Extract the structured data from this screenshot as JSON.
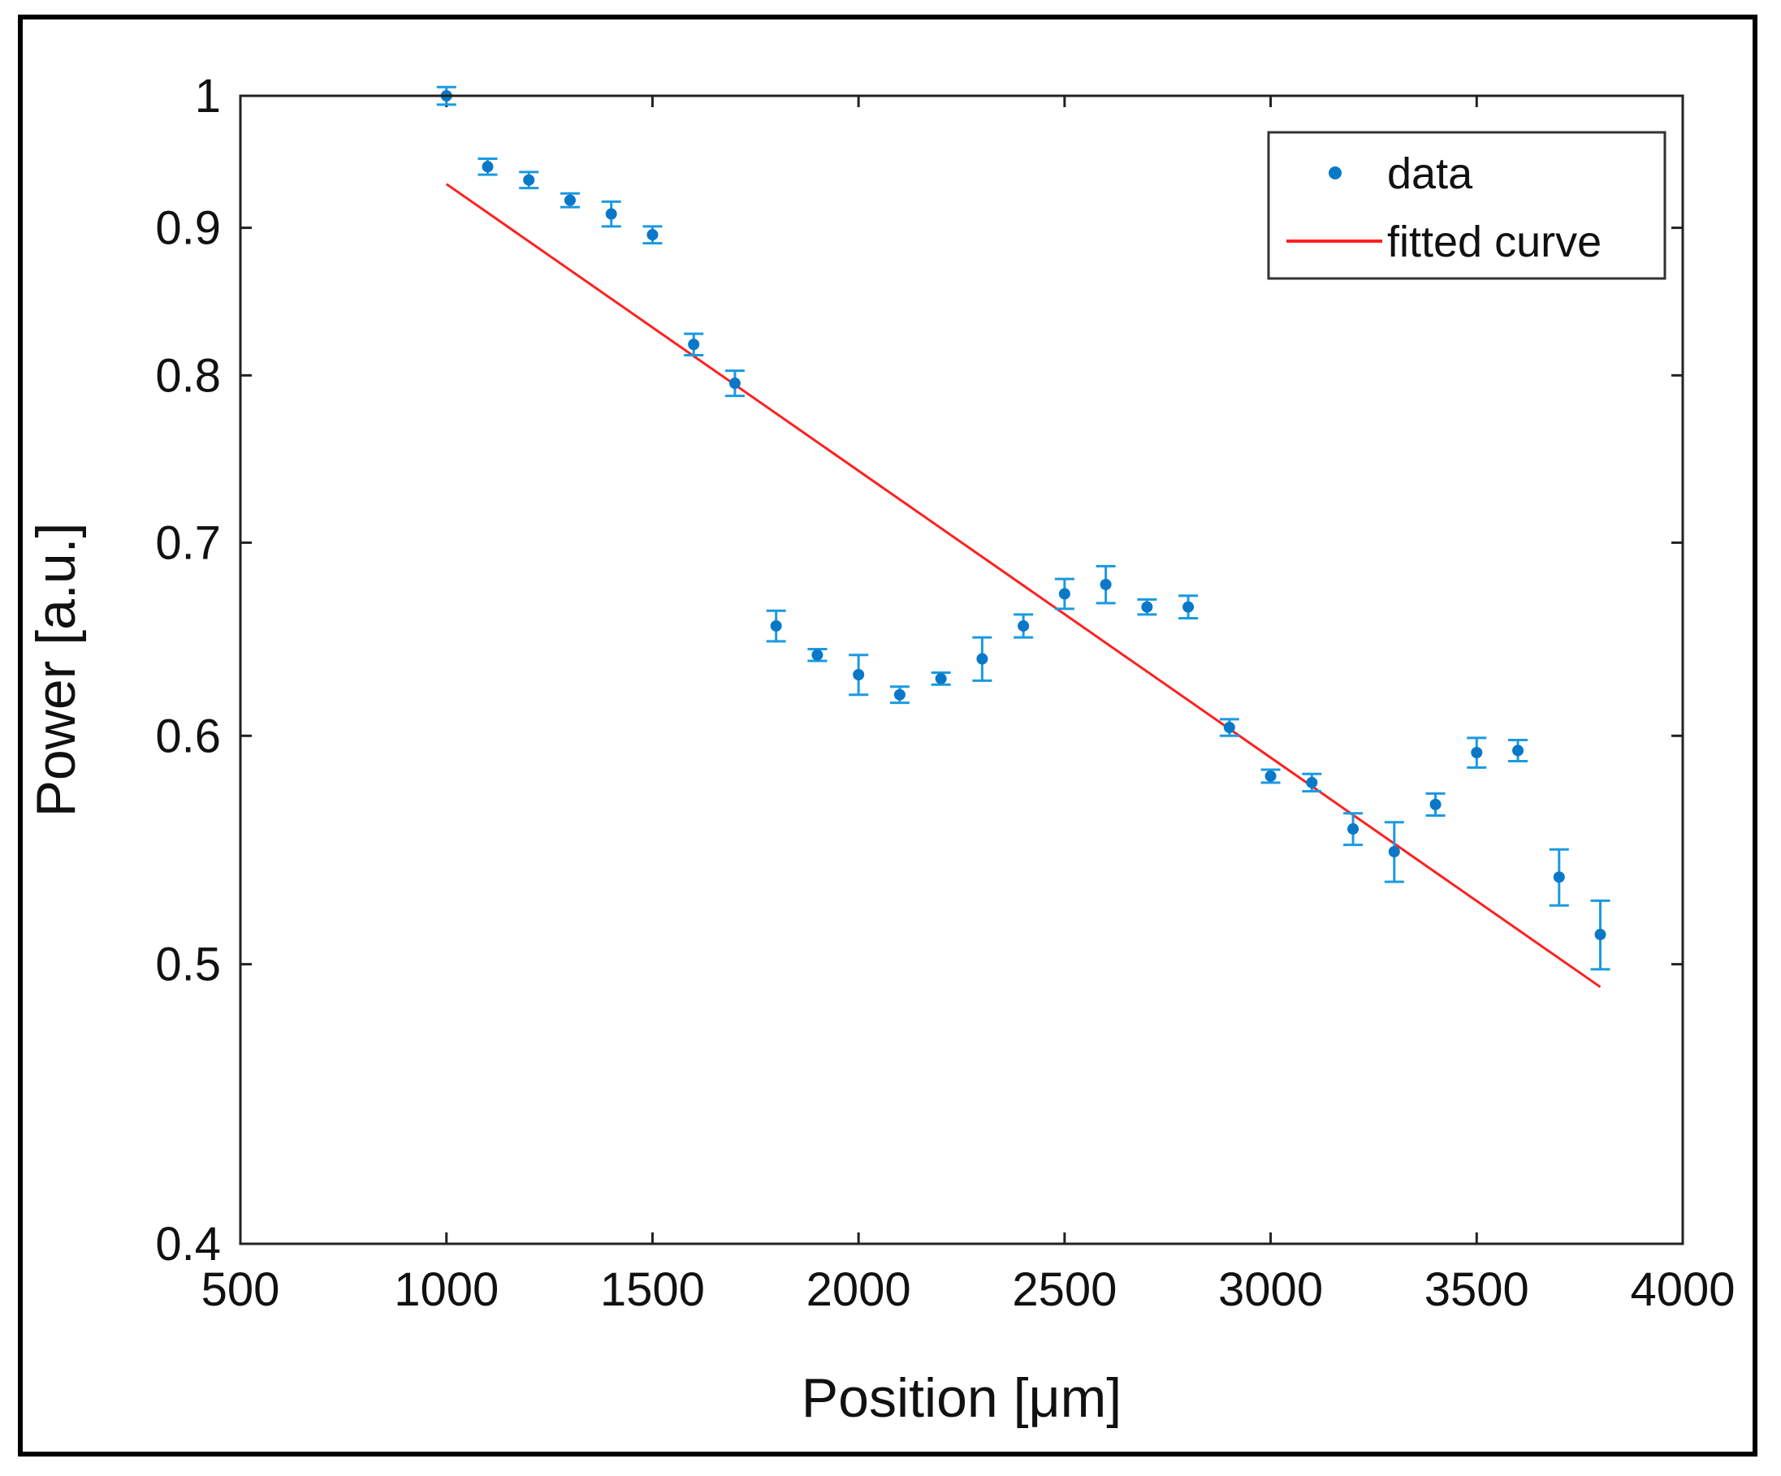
{
  "chart_data": {
    "type": "scatter",
    "xlabel": "Position [μm]",
    "ylabel": "Power [a.u.]",
    "xlim": [
      500,
      4000
    ],
    "ylim": [
      0.4,
      1.0
    ],
    "yscale": "log",
    "grid": false,
    "legend_position": "top-right",
    "x_ticks": [
      500,
      1000,
      1500,
      2000,
      2500,
      3000,
      3500,
      4000
    ],
    "y_ticks": [
      0.4,
      0.5,
      0.6,
      0.7,
      0.8,
      0.9,
      1.0
    ],
    "x_tick_labels": [
      "500",
      "1000",
      "1500",
      "2000",
      "2500",
      "3000",
      "3500",
      "4000"
    ],
    "y_tick_labels": [
      "0.4",
      "0.5",
      "0.6",
      "0.7",
      "0.8",
      "0.9",
      "1"
    ],
    "series": [
      {
        "name": "data",
        "kind": "errorbar-points",
        "color": "#1a9ae0",
        "x": [
          1000,
          1100,
          1200,
          1300,
          1400,
          1500,
          1600,
          1700,
          1800,
          1900,
          2000,
          2100,
          2200,
          2300,
          2400,
          2500,
          2600,
          2700,
          2800,
          2900,
          3000,
          3100,
          3200,
          3300,
          3400,
          3500,
          3600,
          3700,
          3800
        ],
        "y": [
          1.0,
          0.945,
          0.935,
          0.92,
          0.91,
          0.895,
          0.82,
          0.795,
          0.655,
          0.64,
          0.63,
          0.62,
          0.628,
          0.638,
          0.655,
          0.672,
          0.677,
          0.665,
          0.665,
          0.604,
          0.581,
          0.578,
          0.557,
          0.547,
          0.568,
          0.592,
          0.593,
          0.536,
          0.512
        ],
        "err": [
          0.007,
          0.006,
          0.006,
          0.005,
          0.009,
          0.006,
          0.007,
          0.008,
          0.008,
          0.003,
          0.01,
          0.004,
          0.003,
          0.011,
          0.006,
          0.008,
          0.01,
          0.004,
          0.006,
          0.004,
          0.003,
          0.004,
          0.007,
          0.013,
          0.005,
          0.007,
          0.005,
          0.012,
          0.014
        ]
      },
      {
        "name": "fitted curve",
        "kind": "line",
        "color": "#ff2020",
        "x": [
          1000,
          3800
        ],
        "y": [
          0.932,
          0.491
        ]
      }
    ]
  }
}
